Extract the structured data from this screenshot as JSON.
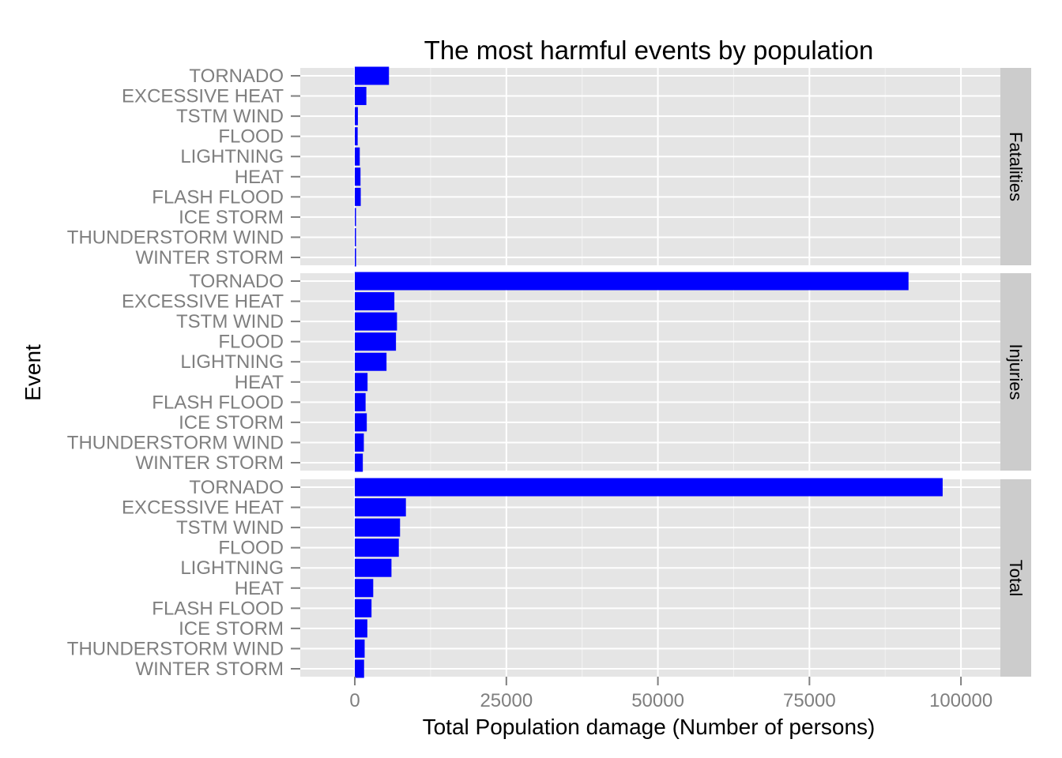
{
  "chart_data": {
    "type": "bar",
    "orientation": "horizontal",
    "title": "The most harmful events by population",
    "xlabel": "Total Population damage (Number of persons)",
    "ylabel": "Event",
    "xlim": [
      -9000,
      106500
    ],
    "x_ticks": [
      0,
      25000,
      50000,
      75000,
      100000
    ],
    "x_tick_labels": [
      "0",
      "25000",
      "50000",
      "75000",
      "100000"
    ],
    "grid": true,
    "bar_color": "#0000ff",
    "panel_color": "#e5e5e5",
    "strip_color": "#cccccc",
    "categories": [
      "TORNADO",
      "EXCESSIVE HEAT",
      "TSTM WIND",
      "FLOOD",
      "LIGHTNING",
      "HEAT",
      "FLASH FLOOD",
      "ICE STORM",
      "THUNDERSTORM WIND",
      "WINTER STORM"
    ],
    "facets": [
      {
        "name": "Fatalities",
        "values": [
          5633,
          1903,
          504,
          470,
          816,
          937,
          978,
          89,
          133,
          206
        ]
      },
      {
        "name": "Injuries",
        "values": [
          91346,
          6525,
          6957,
          6789,
          5230,
          2100,
          1777,
          1975,
          1488,
          1321
        ]
      },
      {
        "name": "Total",
        "values": [
          96979,
          8428,
          7461,
          7259,
          6046,
          3037,
          2755,
          2064,
          1621,
          1527
        ]
      }
    ]
  }
}
